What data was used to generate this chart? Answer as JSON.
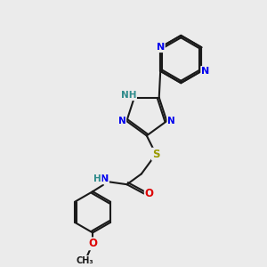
{
  "background_color": "#ebebeb",
  "bond_color": "#1a1a1a",
  "atom_colors": {
    "N": "#0000ee",
    "NH_triazole": "#2e8b8b",
    "H": "#2e8b8b",
    "S": "#9a9a00",
    "O": "#dd0000",
    "C": "#1a1a1a",
    "NH_amide": "#0000ee"
  },
  "figsize": [
    3.0,
    3.0
  ],
  "dpi": 100
}
